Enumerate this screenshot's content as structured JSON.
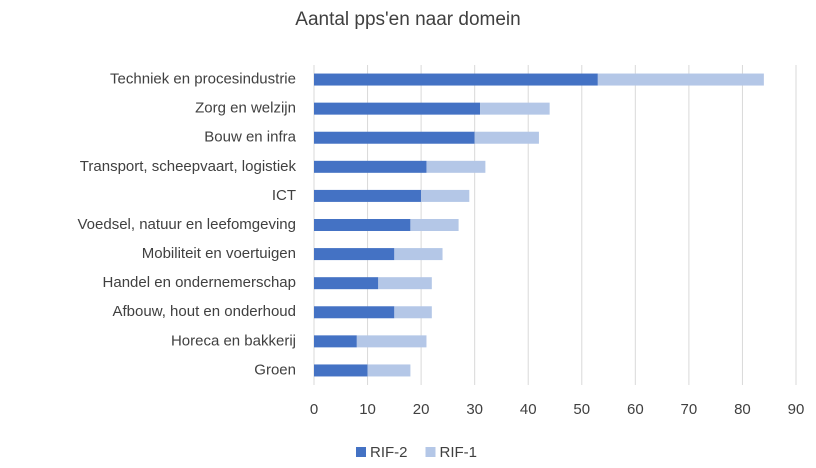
{
  "chart_data": {
    "type": "stacked_barh",
    "title": "Aantal pps'en naar domein",
    "categories": [
      "Techniek en procesindustrie",
      "Zorg en welzijn",
      "Bouw en infra",
      "Transport, scheepvaart, logistiek",
      "ICT",
      "Voedsel, natuur en leefomgeving",
      "Mobiliteit en voertuigen",
      "Handel en ondernemerschap",
      "Afbouw, hout en onderhoud",
      "Horeca en bakkerij",
      "Groen"
    ],
    "series": [
      {
        "name": "RIF-2",
        "color": "#4472c4",
        "values": [
          53,
          31,
          30,
          21,
          20,
          18,
          15,
          12,
          15,
          8,
          10
        ]
      },
      {
        "name": "RIF-1",
        "color": "#b4c7e7",
        "values": [
          31,
          13,
          12,
          11,
          9,
          9,
          9,
          10,
          7,
          13,
          8
        ]
      }
    ],
    "xlim": [
      0,
      90
    ],
    "xticks": [
      0,
      10,
      20,
      30,
      40,
      50,
      60,
      70,
      80,
      90
    ],
    "grid": true,
    "legend": "bottom"
  }
}
